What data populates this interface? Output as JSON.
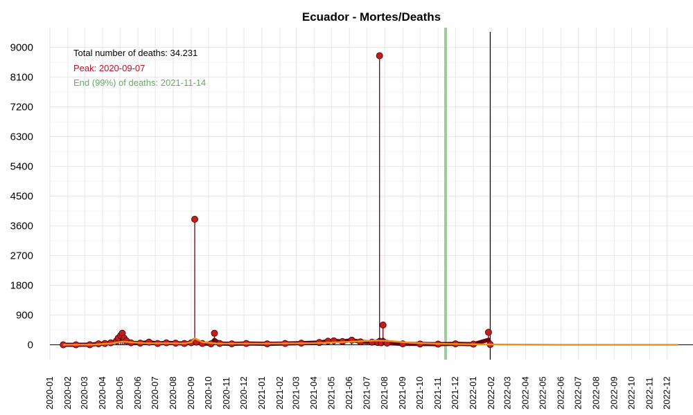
{
  "chart_data": {
    "type": "line",
    "title": "Ecuador - Mortes/Deaths",
    "xlabel": "",
    "ylabel": "",
    "x_range": [
      "2020-01-01",
      "2023-01-15"
    ],
    "ylim": [
      -450,
      9600
    ],
    "y_ticks": [
      0,
      900,
      1800,
      2700,
      3600,
      4500,
      5400,
      6300,
      7200,
      8100,
      9000
    ],
    "x_ticks": [
      "2020-01",
      "2020-02",
      "2020-03",
      "2020-04",
      "2020-05",
      "2020-06",
      "2020-07",
      "2020-08",
      "2020-09",
      "2020-10",
      "2020-11",
      "2020-12",
      "2021-01",
      "2021-02",
      "2021-03",
      "2021-04",
      "2021-05",
      "2021-06",
      "2021-07",
      "2021-08",
      "2021-09",
      "2021-10",
      "2021-11",
      "2021-12",
      "2022-01",
      "2022-02",
      "2022-03",
      "2022-04",
      "2022-05",
      "2022-06",
      "2022-07",
      "2022-08",
      "2022-09",
      "2022-10",
      "2022-11",
      "2022-12"
    ],
    "grid": true,
    "annotations": {
      "total": "Total number of deaths: 34.231",
      "peak": "Peak: 2020-09-07",
      "end": "End (99%) of deaths: 2021-11-14"
    },
    "end_date": "2021-11-14",
    "current_date": "2022-01-30",
    "colors": {
      "daily_line": "#67000d",
      "daily_point": "#c0201e",
      "smooth": "#f0901a",
      "end_line": "#90c890",
      "end_text": "#6aa86a",
      "peak_text": "#c0101e",
      "axis": "#000000"
    },
    "series": [
      {
        "kind": "daily",
        "points": [
          [
            "2020-01-24",
            0
          ],
          [
            "2020-02-15",
            0
          ],
          [
            "2020-03-10",
            2
          ],
          [
            "2020-03-25",
            30
          ],
          [
            "2020-04-05",
            40
          ],
          [
            "2020-04-15",
            60
          ],
          [
            "2020-04-25",
            120
          ],
          [
            "2020-04-28",
            200
          ],
          [
            "2020-05-02",
            280
          ],
          [
            "2020-05-05",
            350
          ],
          [
            "2020-05-08",
            200
          ],
          [
            "2020-05-12",
            120
          ],
          [
            "2020-05-20",
            60
          ],
          [
            "2020-06-05",
            50
          ],
          [
            "2020-06-20",
            80
          ],
          [
            "2020-07-05",
            40
          ],
          [
            "2020-07-20",
            60
          ],
          [
            "2020-08-05",
            50
          ],
          [
            "2020-08-20",
            40
          ],
          [
            "2020-09-01",
            60
          ],
          [
            "2020-09-07",
            3800
          ],
          [
            "2020-09-10",
            80
          ],
          [
            "2020-09-20",
            40
          ],
          [
            "2020-10-05",
            30
          ],
          [
            "2020-10-11",
            350
          ],
          [
            "2020-10-20",
            40
          ],
          [
            "2020-11-10",
            30
          ],
          [
            "2020-12-05",
            40
          ],
          [
            "2021-01-10",
            30
          ],
          [
            "2021-02-10",
            40
          ],
          [
            "2021-03-10",
            50
          ],
          [
            "2021-04-10",
            70
          ],
          [
            "2021-04-25",
            110
          ],
          [
            "2021-05-05",
            120
          ],
          [
            "2021-05-20",
            100
          ],
          [
            "2021-06-05",
            140
          ],
          [
            "2021-06-20",
            90
          ],
          [
            "2021-07-10",
            80
          ],
          [
            "2021-07-20",
            70
          ],
          [
            "2021-07-23",
            8750
          ],
          [
            "2021-07-26",
            60
          ],
          [
            "2021-07-29",
            600
          ],
          [
            "2021-08-05",
            50
          ],
          [
            "2021-09-01",
            30
          ],
          [
            "2021-10-01",
            25
          ],
          [
            "2021-11-01",
            20
          ],
          [
            "2021-12-01",
            30
          ],
          [
            "2022-01-01",
            20
          ],
          [
            "2022-01-27",
            380
          ],
          [
            "2022-01-30",
            10
          ]
        ]
      },
      {
        "kind": "smoothed",
        "points": [
          [
            "2020-01-24",
            0
          ],
          [
            "2020-03-15",
            5
          ],
          [
            "2020-04-15",
            40
          ],
          [
            "2020-05-05",
            100
          ],
          [
            "2020-05-25",
            70
          ],
          [
            "2020-06-20",
            45
          ],
          [
            "2020-07-15",
            50
          ],
          [
            "2020-08-20",
            40
          ],
          [
            "2020-09-01",
            80
          ],
          [
            "2020-09-07",
            200
          ],
          [
            "2020-09-20",
            80
          ],
          [
            "2020-10-15",
            40
          ],
          [
            "2021-01-01",
            35
          ],
          [
            "2021-04-01",
            50
          ],
          [
            "2021-06-01",
            90
          ],
          [
            "2021-07-15",
            130
          ],
          [
            "2021-08-05",
            120
          ],
          [
            "2021-09-15",
            60
          ],
          [
            "2021-11-01",
            30
          ],
          [
            "2022-01-30",
            10
          ],
          [
            "2022-06-01",
            0
          ],
          [
            "2022-12-20",
            0
          ]
        ]
      }
    ]
  }
}
